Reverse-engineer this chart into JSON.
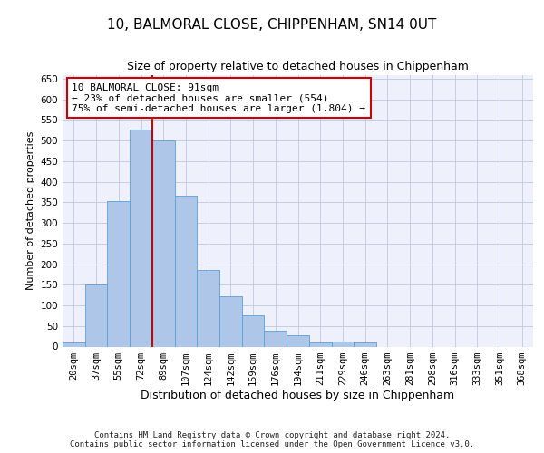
{
  "title": "10, BALMORAL CLOSE, CHIPPENHAM, SN14 0UT",
  "subtitle": "Size of property relative to detached houses in Chippenham",
  "xlabel": "Distribution of detached houses by size in Chippenham",
  "ylabel": "Number of detached properties",
  "categories": [
    "20sqm",
    "37sqm",
    "55sqm",
    "72sqm",
    "89sqm",
    "107sqm",
    "124sqm",
    "142sqm",
    "159sqm",
    "176sqm",
    "194sqm",
    "211sqm",
    "229sqm",
    "246sqm",
    "263sqm",
    "281sqm",
    "298sqm",
    "316sqm",
    "333sqm",
    "351sqm",
    "368sqm"
  ],
  "values": [
    10,
    150,
    353,
    528,
    501,
    367,
    187,
    122,
    75,
    38,
    27,
    11,
    12,
    10,
    0,
    0,
    0,
    0,
    0,
    0,
    0
  ],
  "bar_color": "#aec6e8",
  "bar_edge_color": "#5a9fd4",
  "annotation_line1": "10 BALMORAL CLOSE: 91sqm",
  "annotation_line2": "← 23% of detached houses are smaller (554)",
  "annotation_line3": "75% of semi-detached houses are larger (1,804) →",
  "vline_color": "#cc0000",
  "box_facecolor": "#ffffff",
  "box_edgecolor": "#cc0000",
  "ylim": [
    0,
    660
  ],
  "yticks": [
    0,
    50,
    100,
    150,
    200,
    250,
    300,
    350,
    400,
    450,
    500,
    550,
    600,
    650
  ],
  "footer": "Contains HM Land Registry data © Crown copyright and database right 2024.\nContains public sector information licensed under the Open Government Licence v3.0.",
  "bg_color": "#eef1fb",
  "grid_color": "#c0c8e0",
  "title_fontsize": 11,
  "subtitle_fontsize": 9,
  "xlabel_fontsize": 9,
  "ylabel_fontsize": 8,
  "tick_fontsize": 7.5,
  "ann_fontsize": 8,
  "footer_fontsize": 6.5
}
